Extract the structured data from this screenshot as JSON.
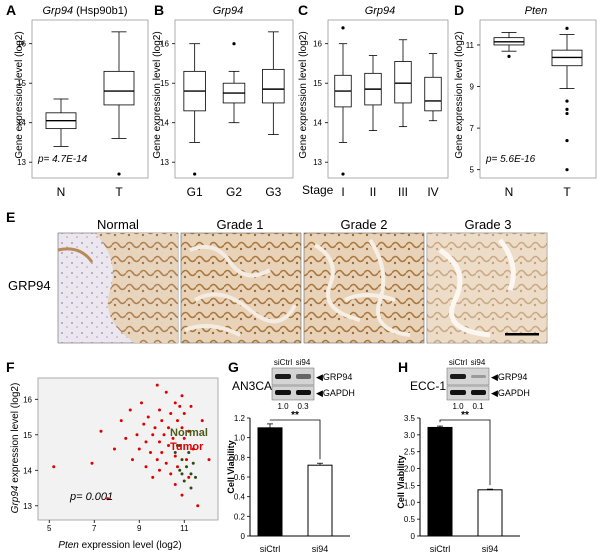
{
  "panels": {
    "A": {
      "letter": "A",
      "title_italic": "Grp94",
      "title_rest": " (Hsp90b1)",
      "ylabel": "Gene expression level (log2)",
      "yticks": [
        "16",
        "15",
        "14",
        "13"
      ],
      "xticks": [
        "N",
        "T"
      ],
      "pvalue": "p= 4.7E-14"
    },
    "B": {
      "letter": "B",
      "title": "Grp94",
      "ylabel": "Gene expression level (log2)",
      "yticks": [
        "16",
        "15",
        "14",
        "13"
      ],
      "xticks": [
        "G1",
        "G2",
        "G3"
      ]
    },
    "C": {
      "letter": "C",
      "title": "Grp94",
      "ylabel": "Gene expression level (log2)",
      "yticks": [
        "16",
        "15",
        "14",
        "13"
      ],
      "stage_label": "Stage",
      "xticks": [
        "I",
        "II",
        "III",
        "IV"
      ]
    },
    "D": {
      "letter": "D",
      "title": "Pten",
      "ylabel": "Gene expression level (log2)",
      "yticks": [
        "11",
        "9",
        "7",
        "5"
      ],
      "xticks": [
        "N",
        "T"
      ],
      "pvalue": "p= 5.6E-16"
    },
    "E": {
      "letter": "E",
      "row_label": "GRP94",
      "columns": [
        "Normal",
        "Grade 1",
        "Grade 2",
        "Grade 3"
      ]
    },
    "F": {
      "letter": "F",
      "ylabel_italic": "Grp94",
      "ylabel_rest": " expression level (log2)",
      "xlabel_italic": "Pten",
      "xlabel_rest": " expression level (log2)",
      "yticks": [
        "16",
        "15",
        "14",
        "13"
      ],
      "xticks": [
        "5",
        "7",
        "9",
        "11"
      ],
      "legend": [
        {
          "label": "Normal",
          "color": "#4a5a1a"
        },
        {
          "label": "Tumor",
          "color": "#e00000"
        }
      ],
      "pvalue": "p= 0.001"
    },
    "G": {
      "letter": "G",
      "cell_line": "AN3CA",
      "lanes": [
        "siCtrl",
        "si94"
      ],
      "blot_labels": [
        "GRP94",
        "GAPDH"
      ],
      "quant": [
        "1.0",
        "0.3"
      ],
      "ylabel": "Cell Viability",
      "yticks": [
        "1.2",
        "1.0",
        "0.8",
        "0.6",
        "0.4",
        "0.2",
        "0"
      ],
      "xticks": [
        "siCtrl",
        "si94"
      ],
      "sig": "**"
    },
    "H": {
      "letter": "H",
      "cell_line": "ECC-1",
      "lanes": [
        "siCtrl",
        "si94"
      ],
      "blot_labels": [
        "GRP94",
        "GAPDH"
      ],
      "quant": [
        "1.0",
        "0.1"
      ],
      "ylabel": "Cell Viability",
      "yticks": [
        "3.5",
        "3.0",
        "2.5",
        "2.0",
        "1.5",
        "1.0",
        "0.5",
        "0"
      ],
      "xticks": [
        "siCtrl",
        "si94"
      ],
      "sig": "**"
    }
  },
  "chart_data": [
    {
      "panel": "A",
      "type": "box",
      "categories": [
        "N",
        "T"
      ],
      "boxes": [
        {
          "whislo": 13.4,
          "q1": 13.85,
          "med": 14.05,
          "q3": 14.25,
          "whishi": 14.6,
          "fliers": []
        },
        {
          "whislo": 13.6,
          "q1": 14.45,
          "med": 14.8,
          "q3": 15.3,
          "whishi": 16.3,
          "fliers": [
            12.7
          ]
        }
      ],
      "ylim": [
        12.6,
        16.6
      ]
    },
    {
      "panel": "B",
      "type": "box",
      "categories": [
        "G1",
        "G2",
        "G3"
      ],
      "boxes": [
        {
          "whislo": 13.5,
          "q1": 14.3,
          "med": 14.8,
          "q3": 15.3,
          "whishi": 16.0,
          "fliers": [
            12.7
          ]
        },
        {
          "whislo": 14.0,
          "q1": 14.5,
          "med": 14.75,
          "q3": 15.0,
          "whishi": 15.3,
          "fliers": [
            16.0
          ]
        },
        {
          "whislo": 13.7,
          "q1": 14.5,
          "med": 14.85,
          "q3": 15.35,
          "whishi": 16.3,
          "fliers": []
        }
      ],
      "ylim": [
        12.6,
        16.6
      ]
    },
    {
      "panel": "C",
      "type": "box",
      "categories": [
        "I",
        "II",
        "III",
        "IV"
      ],
      "boxes": [
        {
          "whislo": 13.5,
          "q1": 14.4,
          "med": 14.8,
          "q3": 15.2,
          "whishi": 16.0,
          "fliers": [
            12.7,
            16.4
          ]
        },
        {
          "whislo": 13.8,
          "q1": 14.45,
          "med": 14.85,
          "q3": 15.25,
          "whishi": 15.7,
          "fliers": []
        },
        {
          "whislo": 13.9,
          "q1": 14.5,
          "med": 15.0,
          "q3": 15.55,
          "whishi": 16.1,
          "fliers": []
        },
        {
          "whislo": 14.05,
          "q1": 14.3,
          "med": 14.55,
          "q3": 15.15,
          "whishi": 15.75,
          "fliers": []
        }
      ],
      "ylim": [
        12.6,
        16.6
      ]
    },
    {
      "panel": "D",
      "type": "box",
      "categories": [
        "N",
        "T"
      ],
      "boxes": [
        {
          "whislo": 10.7,
          "q1": 11.0,
          "med": 11.15,
          "q3": 11.35,
          "whishi": 11.6,
          "fliers": [
            10.45
          ]
        },
        {
          "whislo": 8.9,
          "q1": 10.0,
          "med": 10.4,
          "q3": 10.75,
          "whishi": 11.5,
          "fliers": [
            8.3,
            7.9,
            7.7,
            6.4,
            5.0,
            11.8
          ]
        }
      ],
      "ylim": [
        4.6,
        12.2
      ]
    },
    {
      "panel": "F",
      "type": "scatter",
      "xlim": [
        4.5,
        12.5
      ],
      "ylim": [
        12.6,
        16.6
      ],
      "series": [
        {
          "name": "Tumor",
          "color": "#e00000",
          "points": [
            [
              9.8,
              16.4
            ],
            [
              10.2,
              16.2
            ],
            [
              10.9,
              16.1
            ],
            [
              9.1,
              15.9
            ],
            [
              10.6,
              15.9
            ],
            [
              11.3,
              15.8
            ],
            [
              8.6,
              15.7
            ],
            [
              9.9,
              15.7
            ],
            [
              10.4,
              15.6
            ],
            [
              11.0,
              15.6
            ],
            [
              11.8,
              15.4
            ],
            [
              9.4,
              15.5
            ],
            [
              10.0,
              15.4
            ],
            [
              10.7,
              15.4
            ],
            [
              9.2,
              15.3
            ],
            [
              9.7,
              15.2
            ],
            [
              10.3,
              15.2
            ],
            [
              10.9,
              15.2
            ],
            [
              11.2,
              15.1
            ],
            [
              7.3,
              15.1
            ],
            [
              8.9,
              15.0
            ],
            [
              9.6,
              15.0
            ],
            [
              10.1,
              15.0
            ],
            [
              10.5,
              14.9
            ],
            [
              11.0,
              14.9
            ],
            [
              8.4,
              14.9
            ],
            [
              9.3,
              14.8
            ],
            [
              9.9,
              14.8
            ],
            [
              10.3,
              14.7
            ],
            [
              10.8,
              14.7
            ],
            [
              11.4,
              14.6
            ],
            [
              7.9,
              14.6
            ],
            [
              9.0,
              14.6
            ],
            [
              9.5,
              14.5
            ],
            [
              10.0,
              14.5
            ],
            [
              10.6,
              14.4
            ],
            [
              11.1,
              14.3
            ],
            [
              8.7,
              14.3
            ],
            [
              9.8,
              14.3
            ],
            [
              10.2,
              14.2
            ],
            [
              10.7,
              14.1
            ],
            [
              9.3,
              14.1
            ],
            [
              9.9,
              14.0
            ],
            [
              10.4,
              13.9
            ],
            [
              11.2,
              13.8
            ],
            [
              10.6,
              13.6
            ],
            [
              6.9,
              14.2
            ],
            [
              5.2,
              14.1
            ],
            [
              7.6,
              13.2
            ],
            [
              12.1,
              14.3
            ],
            [
              11.6,
              13.0
            ],
            [
              10.9,
              13.3
            ],
            [
              9.6,
              13.8
            ],
            [
              8.2,
              15.4
            ],
            [
              10.8,
              15.8
            ]
          ]
        },
        {
          "name": "Normal",
          "color": "#2d4a10",
          "points": [
            [
              10.6,
              14.5
            ],
            [
              10.9,
              14.3
            ],
            [
              11.1,
              14.1
            ],
            [
              11.3,
              13.9
            ],
            [
              10.8,
              14.0
            ],
            [
              11.0,
              13.7
            ],
            [
              11.4,
              14.2
            ],
            [
              11.2,
              14.5
            ],
            [
              10.7,
              14.7
            ],
            [
              11.5,
              13.8
            ],
            [
              11.3,
              13.5
            ],
            [
              10.9,
              13.9
            ]
          ]
        }
      ]
    },
    {
      "panel": "G",
      "type": "bar",
      "categories": [
        "siCtrl",
        "si94"
      ],
      "values": [
        1.1,
        0.72
      ],
      "errors": [
        0.04,
        0.02
      ],
      "ylim": [
        0,
        1.2
      ]
    },
    {
      "panel": "H",
      "type": "bar",
      "categories": [
        "siCtrl",
        "si94"
      ],
      "values": [
        3.22,
        1.37
      ],
      "errors": [
        0.04,
        0.02
      ],
      "ylim": [
        0,
        3.5
      ]
    }
  ]
}
